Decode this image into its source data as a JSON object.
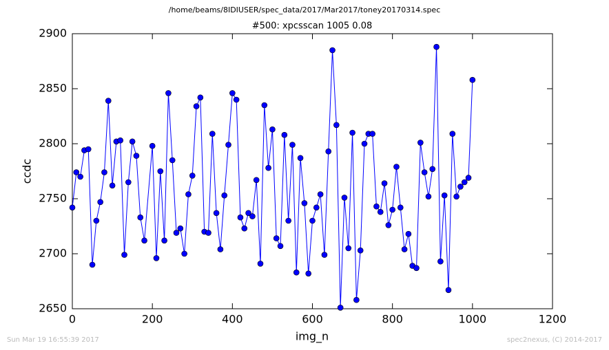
{
  "chart_data": {
    "type": "line",
    "suptitle": "/home/beams/8IDIUSER/spec_data/2017/Mar2017/toney20170314.spec",
    "title": "#500: xpcsscan 1005 0.08",
    "xlabel": "img_n",
    "ylabel": "ccdc",
    "footer_left": "Sun Mar 19 16:55:39 2017",
    "footer_right": "spec2nexus, (C) 2014-2017",
    "xlim": [
      0,
      1200
    ],
    "xticks": [
      0,
      200,
      400,
      600,
      800,
      1000,
      1200
    ],
    "ylim": [
      2650,
      2900
    ],
    "yticks": [
      2650,
      2700,
      2750,
      2800,
      2850,
      2900
    ],
    "x": [
      0,
      10,
      20,
      30,
      40,
      50,
      60,
      70,
      80,
      90,
      100,
      110,
      120,
      130,
      140,
      150,
      160,
      170,
      180,
      200,
      210,
      220,
      230,
      240,
      250,
      260,
      270,
      280,
      290,
      300,
      310,
      320,
      330,
      340,
      350,
      360,
      370,
      380,
      390,
      400,
      410,
      420,
      430,
      440,
      450,
      460,
      470,
      480,
      490,
      500,
      510,
      520,
      530,
      540,
      550,
      560,
      570,
      580,
      590,
      600,
      610,
      620,
      630,
      640,
      650,
      660,
      670,
      680,
      690,
      700,
      710,
      720,
      730,
      740,
      750,
      760,
      770,
      780,
      790,
      800,
      810,
      820,
      830,
      840,
      850,
      860,
      870,
      880,
      890,
      900,
      910,
      920,
      930,
      940,
      950,
      960,
      970,
      980,
      990,
      1000
    ],
    "series": [
      {
        "name": "ccdc",
        "color": "#0000ff",
        "values": [
          2742,
          2774,
          2770,
          2794,
          2795,
          2690,
          2730,
          2747,
          2774,
          2839,
          2762,
          2802,
          2803,
          2699,
          2765,
          2802,
          2789,
          2733,
          2712,
          2798,
          2696,
          2775,
          2712,
          2846,
          2785,
          2719,
          2723,
          2700,
          2754,
          2771,
          2834,
          2842,
          2720,
          2719,
          2809,
          2737,
          2704,
          2753,
          2799,
          2846,
          2840,
          2733,
          2723,
          2737,
          2734,
          2767,
          2691,
          2835,
          2778,
          2813,
          2714,
          2707,
          2808,
          2730,
          2799,
          2683,
          2787,
          2746,
          2682,
          2730,
          2742,
          2754,
          2699,
          2793,
          2885,
          2817,
          2651,
          2751,
          2705,
          2810,
          2658,
          2703,
          2800,
          2809,
          2809,
          2743,
          2738,
          2764,
          2726,
          2740,
          2779,
          2742,
          2704,
          2718,
          2689,
          2687,
          2801,
          2774,
          2752,
          2777,
          2888,
          2693,
          2753,
          2667,
          2809,
          2752,
          2761,
          2765,
          2769,
          2858
        ]
      }
    ]
  }
}
